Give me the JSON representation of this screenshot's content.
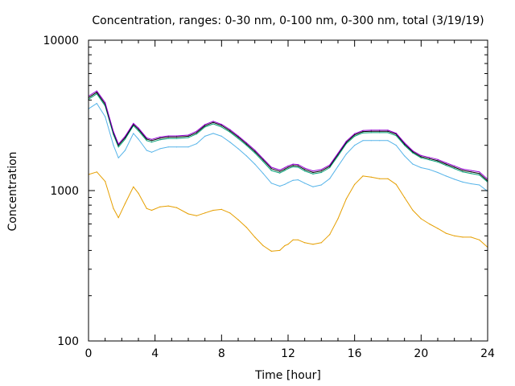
{
  "chart_data": {
    "type": "line",
    "title": "Concentration, ranges: 0-30 nm, 0-100 nm, 0-300 nm, total (3/19/19)",
    "xlabel": "Time [hour]",
    "ylabel": "Concentration",
    "xlim": [
      0,
      24
    ],
    "ylim": [
      100,
      10000
    ],
    "yscale": "log",
    "xticks": [
      "0",
      "4",
      "8",
      "12",
      "16",
      "20",
      "24"
    ],
    "yticks": [
      "100",
      "1000",
      "10000"
    ],
    "grid": false,
    "series": [
      {
        "color": "#e69f00",
        "x": [
          0,
          0.5,
          1,
          1.5,
          1.8,
          2.2,
          2.7,
          3,
          3.5,
          3.8,
          4.3,
          4.8,
          5.3,
          6,
          6.5,
          7,
          7.5,
          8,
          8.5,
          9,
          9.5,
          10,
          10.5,
          11,
          11.5,
          11.8,
          12,
          12.3,
          12.6,
          13,
          13.5,
          14,
          14.5,
          15,
          15.5,
          16,
          16.5,
          17,
          17.5,
          18,
          18.5,
          19,
          19.5,
          20,
          20.5,
          21,
          21.5,
          22,
          22.5,
          23,
          23.5,
          24
        ],
        "values": [
          1280,
          1330,
          1150,
          760,
          660,
          820,
          1060,
          960,
          760,
          740,
          780,
          790,
          770,
          700,
          680,
          710,
          740,
          750,
          710,
          640,
          570,
          490,
          430,
          395,
          400,
          430,
          440,
          470,
          470,
          450,
          440,
          450,
          510,
          650,
          880,
          1100,
          1250,
          1230,
          1200,
          1200,
          1100,
          900,
          740,
          650,
          600,
          560,
          520,
          500,
          490,
          490,
          470,
          420
        ]
      },
      {
        "color": "#56b4e9",
        "x": [
          0,
          0.5,
          1,
          1.5,
          1.8,
          2.2,
          2.7,
          3,
          3.5,
          3.8,
          4.3,
          4.8,
          5.3,
          6,
          6.5,
          7,
          7.5,
          8,
          8.5,
          9,
          9.5,
          10,
          10.5,
          11,
          11.5,
          11.8,
          12,
          12.3,
          12.6,
          13,
          13.5,
          14,
          14.5,
          15,
          15.5,
          16,
          16.5,
          17,
          17.5,
          18,
          18.5,
          19,
          19.5,
          20,
          20.5,
          21,
          21.5,
          22,
          22.5,
          23,
          23.5,
          24
        ],
        "values": [
          3500,
          3800,
          3100,
          2000,
          1650,
          1850,
          2400,
          2200,
          1850,
          1800,
          1900,
          1950,
          1950,
          1950,
          2050,
          2300,
          2400,
          2300,
          2100,
          1900,
          1700,
          1500,
          1300,
          1120,
          1070,
          1100,
          1130,
          1170,
          1180,
          1120,
          1060,
          1090,
          1200,
          1450,
          1750,
          2000,
          2150,
          2150,
          2150,
          2150,
          2000,
          1700,
          1500,
          1420,
          1380,
          1320,
          1250,
          1190,
          1140,
          1110,
          1090,
          990
        ]
      },
      {
        "color": "#009e73",
        "x": [
          0,
          0.5,
          1,
          1.5,
          1.8,
          2.2,
          2.7,
          3,
          3.5,
          3.8,
          4.3,
          4.8,
          5.3,
          6,
          6.5,
          7,
          7.5,
          8,
          8.5,
          9,
          9.5,
          10,
          10.5,
          11,
          11.5,
          11.8,
          12,
          12.3,
          12.6,
          13,
          13.5,
          14,
          14.5,
          15,
          15.5,
          16,
          16.5,
          17,
          17.5,
          18,
          18.5,
          19,
          19.5,
          20,
          20.5,
          21,
          21.5,
          22,
          22.5,
          23,
          23.5,
          24
        ],
        "values": [
          4050,
          4400,
          3650,
          2350,
          1950,
          2200,
          2700,
          2500,
          2150,
          2100,
          2180,
          2220,
          2220,
          2250,
          2380,
          2650,
          2780,
          2650,
          2450,
          2220,
          2000,
          1780,
          1560,
          1360,
          1310,
          1360,
          1400,
          1440,
          1430,
          1350,
          1290,
          1320,
          1420,
          1700,
          2050,
          2300,
          2420,
          2430,
          2430,
          2430,
          2320,
          2000,
          1780,
          1650,
          1600,
          1550,
          1470,
          1400,
          1330,
          1300,
          1270,
          1140
        ]
      },
      {
        "color": "#000000",
        "x": [
          0,
          0.5,
          1,
          1.5,
          1.8,
          2.2,
          2.7,
          3,
          3.5,
          3.8,
          4.3,
          4.8,
          5.3,
          6,
          6.5,
          7,
          7.5,
          8,
          8.5,
          9,
          9.5,
          10,
          10.5,
          11,
          11.5,
          11.8,
          12,
          12.3,
          12.6,
          13,
          13.5,
          14,
          14.5,
          15,
          15.5,
          16,
          16.5,
          17,
          17.5,
          18,
          18.5,
          19,
          19.5,
          20,
          20.5,
          21,
          21.5,
          22,
          22.5,
          23,
          23.5,
          24
        ],
        "values": [
          4150,
          4500,
          3750,
          2420,
          2000,
          2250,
          2750,
          2560,
          2200,
          2150,
          2230,
          2270,
          2270,
          2300,
          2430,
          2700,
          2840,
          2710,
          2500,
          2270,
          2040,
          1820,
          1600,
          1400,
          1340,
          1390,
          1430,
          1470,
          1460,
          1380,
          1320,
          1350,
          1450,
          1740,
          2090,
          2350,
          2470,
          2480,
          2480,
          2480,
          2370,
          2040,
          1810,
          1680,
          1630,
          1580,
          1500,
          1430,
          1360,
          1330,
          1300,
          1160
        ]
      },
      {
        "color": "#9400d3",
        "x": [
          0,
          0.5,
          1,
          1.5,
          1.8,
          2.2,
          2.7,
          3,
          3.5,
          3.8,
          4.3,
          4.8,
          5.3,
          6,
          6.5,
          7,
          7.5,
          8,
          8.5,
          9,
          9.5,
          10,
          10.5,
          11,
          11.5,
          11.8,
          12,
          12.3,
          12.6,
          13,
          13.5,
          14,
          14.5,
          15,
          15.5,
          16,
          16.5,
          17,
          17.5,
          18,
          18.5,
          19,
          19.5,
          20,
          20.5,
          21,
          21.5,
          22,
          22.5,
          23,
          23.5,
          24
        ],
        "values": [
          4250,
          4600,
          3850,
          2470,
          2040,
          2300,
          2800,
          2610,
          2240,
          2190,
          2270,
          2310,
          2310,
          2340,
          2480,
          2750,
          2890,
          2760,
          2550,
          2310,
          2080,
          1860,
          1630,
          1430,
          1370,
          1420,
          1460,
          1500,
          1490,
          1410,
          1350,
          1380,
          1480,
          1770,
          2130,
          2390,
          2510,
          2520,
          2520,
          2520,
          2410,
          2080,
          1840,
          1710,
          1660,
          1610,
          1530,
          1460,
          1390,
          1360,
          1330,
          1190
        ]
      }
    ]
  }
}
